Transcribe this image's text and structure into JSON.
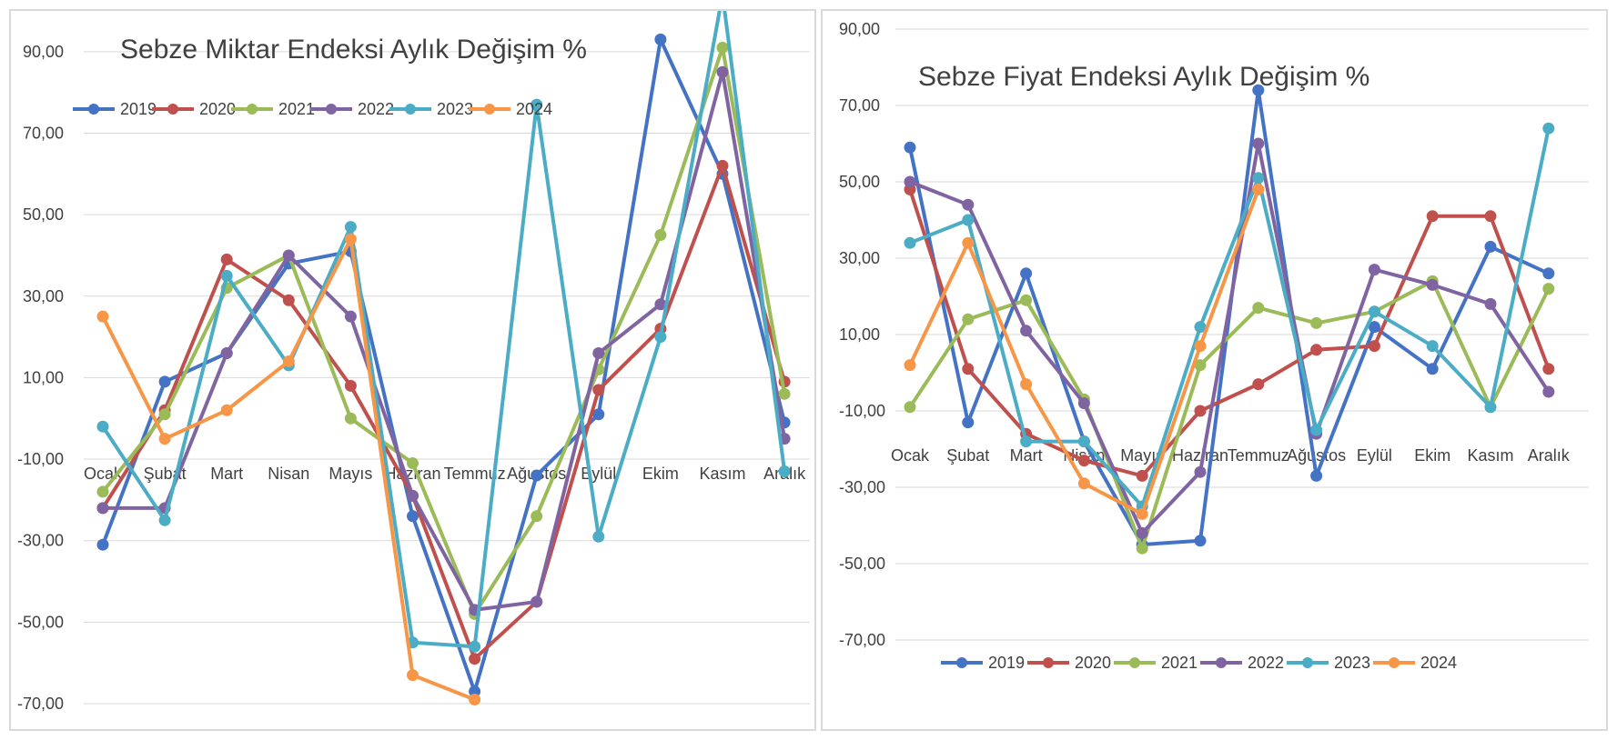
{
  "chart_data": [
    {
      "type": "line",
      "title": "Sebze Miktar Endeksi Aylık Değişim %",
      "categories": [
        "Ocak",
        "Şubat",
        "Mart",
        "Nisan",
        "Mayıs",
        "Haziran",
        "Temmuz",
        "Ağustos",
        "Eylül",
        "Ekim",
        "Kasım",
        "Aralık"
      ],
      "y_tick_labels": [
        "90,00",
        "70,00",
        "50,00",
        "30,00",
        "10,00",
        "-10,00",
        "-30,00",
        "-50,00",
        "-70,00"
      ],
      "ylim": [
        -70,
        100
      ],
      "grid": true,
      "legend_position": "top-left",
      "series": [
        {
          "name": "2019",
          "color": "#4472c4",
          "values": [
            -31,
            9,
            16,
            38,
            41,
            -24,
            -67,
            -14,
            1,
            93,
            60,
            -1
          ]
        },
        {
          "name": "2020",
          "color": "#c0504d",
          "values": [
            -22,
            2,
            39,
            29,
            8,
            -19,
            -59,
            -45,
            7,
            22,
            62,
            9
          ]
        },
        {
          "name": "2021",
          "color": "#9bbb59",
          "values": [
            -18,
            1,
            32,
            40,
            0,
            -11,
            -48,
            -24,
            12,
            45,
            91,
            6
          ]
        },
        {
          "name": "2022",
          "color": "#8064a2",
          "values": [
            -22,
            -22,
            16,
            40,
            25,
            -19,
            -47,
            -45,
            16,
            28,
            85,
            -5
          ]
        },
        {
          "name": "2023",
          "color": "#4bacc6",
          "values": [
            -2,
            -25,
            35,
            13,
            47,
            -55,
            -56,
            77,
            -29,
            20,
            104,
            -13
          ]
        },
        {
          "name": "2024",
          "color": "#f79646",
          "values": [
            25,
            -5,
            2,
            14,
            44,
            -63,
            -69,
            null,
            null,
            null,
            null,
            null
          ]
        }
      ]
    },
    {
      "type": "line",
      "title": "Sebze Fiyat Endeksi Aylık Değişim %",
      "categories": [
        "Ocak",
        "Şubat",
        "Mart",
        "Nisan",
        "Mayıs",
        "Haziran",
        "Temmuz",
        "Ağustos",
        "Eylül",
        "Ekim",
        "Kasım",
        "Aralık"
      ],
      "y_tick_labels": [
        "90,00",
        "70,00",
        "50,00",
        "30,00",
        "10,00",
        "-10,00",
        "-30,00",
        "-50,00",
        "-70,00"
      ],
      "ylim": [
        -70,
        90
      ],
      "grid": true,
      "legend_position": "bottom",
      "series": [
        {
          "name": "2019",
          "color": "#4472c4",
          "values": [
            59,
            -13,
            26,
            -18,
            -45,
            -44,
            74,
            -27,
            12,
            1,
            33,
            26
          ]
        },
        {
          "name": "2020",
          "color": "#c0504d",
          "values": [
            48,
            1,
            -16,
            -23,
            -27,
            -10,
            -3,
            6,
            7,
            41,
            41,
            1
          ]
        },
        {
          "name": "2021",
          "color": "#9bbb59",
          "values": [
            -9,
            14,
            19,
            -7,
            -46,
            2,
            17,
            13,
            16,
            24,
            -9,
            22
          ]
        },
        {
          "name": "2022",
          "color": "#8064a2",
          "values": [
            50,
            44,
            11,
            -8,
            -42,
            -26,
            60,
            -16,
            27,
            23,
            18,
            -5
          ]
        },
        {
          "name": "2023",
          "color": "#4bacc6",
          "values": [
            34,
            40,
            -18,
            -18,
            -35,
            12,
            51,
            -15,
            16,
            7,
            -9,
            64
          ]
        },
        {
          "name": "2024",
          "color": "#f79646",
          "values": [
            2,
            34,
            -3,
            -29,
            -37,
            7,
            48,
            null,
            null,
            null,
            null,
            null
          ]
        }
      ]
    }
  ]
}
